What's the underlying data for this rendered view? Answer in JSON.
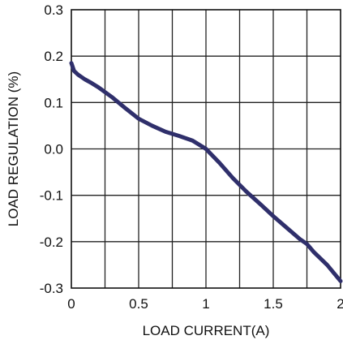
{
  "chart_data": {
    "type": "line",
    "title": "",
    "xlabel": "LOAD CURRENT(A)",
    "ylabel": "LOAD REGULATION  (%)",
    "xlim": [
      0,
      2
    ],
    "ylim": [
      -0.3,
      0.3
    ],
    "grid": true,
    "x_ticks": [
      "0",
      "0.5",
      "1",
      "1.5",
      "2"
    ],
    "y_ticks": [
      "0.3",
      "0.2",
      "0.1",
      "0.0",
      "-0.1",
      "-0.2",
      "-0.3"
    ],
    "series": [
      {
        "color": "#2f2f6b",
        "x": [
          0.0,
          0.02,
          0.05,
          0.1,
          0.15,
          0.2,
          0.3,
          0.4,
          0.5,
          0.6,
          0.7,
          0.8,
          0.9,
          1.0,
          1.1,
          1.2,
          1.3,
          1.4,
          1.5,
          1.6,
          1.7,
          1.75,
          1.8,
          1.9,
          2.0
        ],
        "y": [
          0.185,
          0.168,
          0.16,
          0.15,
          0.142,
          0.133,
          0.112,
          0.088,
          0.065,
          0.05,
          0.037,
          0.028,
          0.018,
          0.0,
          -0.03,
          -0.063,
          -0.092,
          -0.118,
          -0.145,
          -0.17,
          -0.195,
          -0.205,
          -0.222,
          -0.25,
          -0.285
        ]
      }
    ]
  }
}
